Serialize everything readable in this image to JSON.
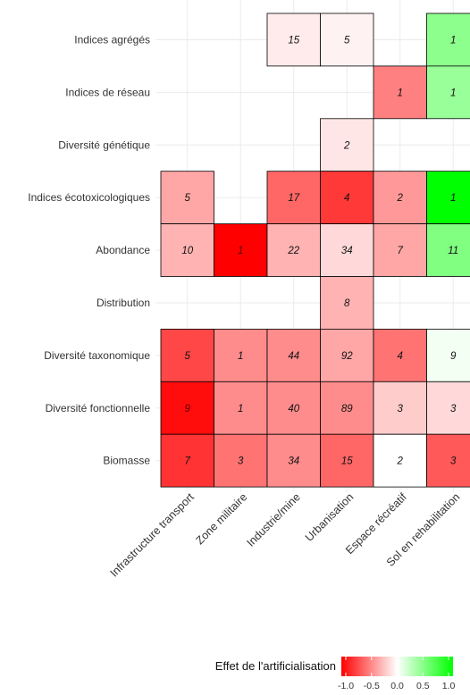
{
  "chart_data": {
    "type": "heatmap",
    "rows": [
      "Indices agrégés",
      "Indices de réseau",
      "Diversité génétique",
      "Indices écotoxicologiques",
      "Abondance",
      "Distribution",
      "Diversité taxonomique",
      "Diversité fonctionnelle",
      "Biomasse"
    ],
    "columns": [
      "Infrastructure transport",
      "Zone militaire",
      "Industrie/mine",
      "Urbanisation",
      "Espace récréatif",
      "Sol en rehabilitation"
    ],
    "cells": [
      [
        null,
        null,
        {
          "count": 15,
          "effect": -0.08
        },
        {
          "count": 5,
          "effect": -0.05
        },
        null,
        {
          "count": 1,
          "effect": 0.45
        }
      ],
      [
        null,
        null,
        null,
        null,
        {
          "count": 1,
          "effect": -0.5
        },
        {
          "count": 1,
          "effect": 0.4
        }
      ],
      [
        null,
        null,
        null,
        {
          "count": 2,
          "effect": -0.1
        },
        null,
        null
      ],
      [
        {
          "count": 5,
          "effect": -0.35
        },
        null,
        {
          "count": 17,
          "effect": -0.6
        },
        {
          "count": 4,
          "effect": -0.78
        },
        {
          "count": 2,
          "effect": -0.4
        },
        {
          "count": 1,
          "effect": 1.0
        }
      ],
      [
        {
          "count": 10,
          "effect": -0.3
        },
        {
          "count": 1,
          "effect": -1.0
        },
        {
          "count": 22,
          "effect": -0.3
        },
        {
          "count": 34,
          "effect": -0.15
        },
        {
          "count": 7,
          "effect": -0.35
        },
        {
          "count": 11,
          "effect": 0.5
        }
      ],
      [
        null,
        null,
        null,
        {
          "count": 8,
          "effect": -0.3
        },
        null,
        null
      ],
      [
        {
          "count": 5,
          "effect": -0.72
        },
        {
          "count": 1,
          "effect": -0.45
        },
        {
          "count": 44,
          "effect": -0.45
        },
        {
          "count": 92,
          "effect": -0.35
        },
        {
          "count": 4,
          "effect": -0.55
        },
        {
          "count": 9,
          "effect": 0.05
        }
      ],
      [
        {
          "count": 9,
          "effect": -0.95
        },
        {
          "count": 1,
          "effect": -0.45
        },
        {
          "count": 40,
          "effect": -0.45
        },
        {
          "count": 89,
          "effect": -0.45
        },
        {
          "count": 3,
          "effect": -0.2
        },
        {
          "count": 3,
          "effect": -0.15
        }
      ],
      [
        {
          "count": 7,
          "effect": -0.8
        },
        {
          "count": 3,
          "effect": -0.55
        },
        {
          "count": 34,
          "effect": -0.45
        },
        {
          "count": 15,
          "effect": -0.6
        },
        {
          "count": 2,
          "effect": 0.0
        },
        {
          "count": 3,
          "effect": -0.65
        }
      ]
    ],
    "legend": {
      "title": "Effet de l'artificialisation",
      "ticks": [
        "-1.0",
        "-0.5",
        "0.0",
        "0.5",
        "1.0"
      ],
      "range": [
        -1,
        1
      ],
      "low_color": "#ff0000",
      "mid_color": "#ffffff",
      "high_color": "#00ff00",
      "placement": "bottom"
    },
    "grid": true
  }
}
